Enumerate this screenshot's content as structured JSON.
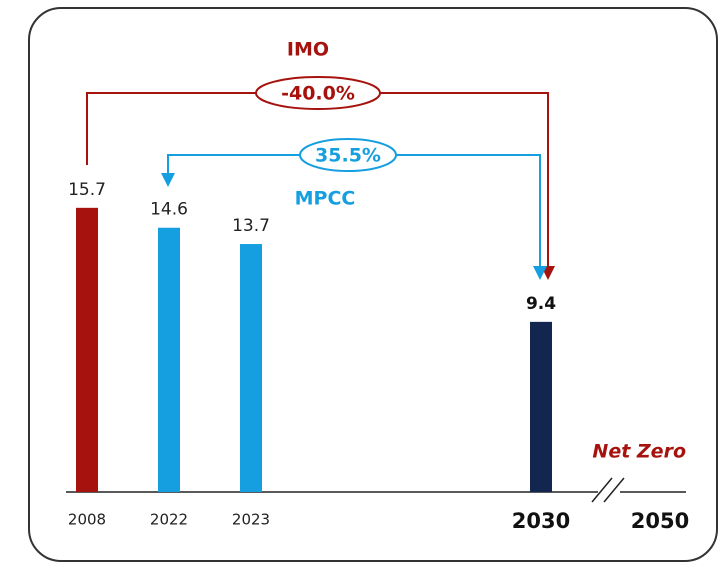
{
  "chart_data": {
    "type": "bar",
    "categories": [
      "2008",
      "2022",
      "2023",
      "2030",
      "2050"
    ],
    "values": [
      15.7,
      14.6,
      13.7,
      9.4,
      null
    ],
    "colors": [
      "#a6120d",
      "#159fe0",
      "#159fe0",
      "#12264f",
      null
    ],
    "annotations": {
      "imo_label": "IMO",
      "imo_change": "-40.0%",
      "mpcc_change": "35.5%",
      "mpcc_label": "MPCC",
      "net_zero": "Net Zero"
    }
  }
}
